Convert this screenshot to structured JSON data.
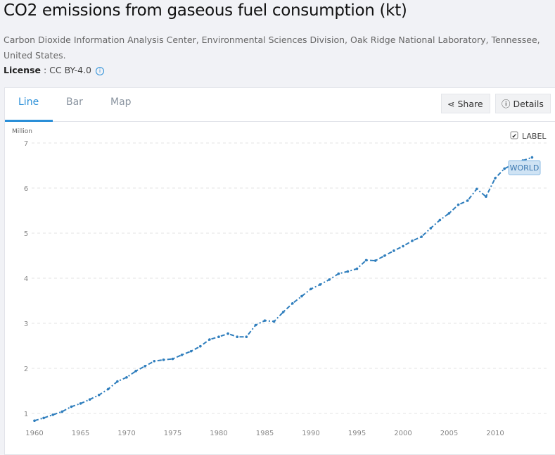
{
  "title": "CO2 emissions from gaseous fuel consumption (kt)",
  "source": "Carbon Dioxide Information Analysis Center, Environmental Sciences Division, Oak Ridge National Laboratory, Tennessee, United States.",
  "license": {
    "label": "License",
    "value": ": CC BY-4.0"
  },
  "tabs": [
    "Line",
    "Bar",
    "Map"
  ],
  "buttons": {
    "share": "Share",
    "details": "Details"
  },
  "label_toggle": "LABEL",
  "colors": {
    "accent": "#2a8fd8",
    "series": "#2f7ebd"
  },
  "chart_data": {
    "type": "line",
    "title": "CO2 emissions from gaseous fuel consumption (kt)",
    "ylabel": "Million",
    "ylim": [
      0.8,
      7
    ],
    "yticks": [
      1,
      2,
      3,
      4,
      5,
      6,
      7
    ],
    "xticks": [
      1960,
      1965,
      1970,
      1975,
      1980,
      1985,
      1990,
      1995,
      2000,
      2005,
      2010
    ],
    "grid": true,
    "series": [
      {
        "name": "WORLD",
        "x": [
          1960,
          1961,
          1962,
          1963,
          1964,
          1965,
          1966,
          1967,
          1968,
          1969,
          1970,
          1971,
          1972,
          1973,
          1974,
          1975,
          1976,
          1977,
          1978,
          1979,
          1980,
          1981,
          1982,
          1983,
          1984,
          1985,
          1986,
          1987,
          1988,
          1989,
          1990,
          1991,
          1992,
          1993,
          1994,
          1995,
          1996,
          1997,
          1998,
          1999,
          2000,
          2001,
          2002,
          2003,
          2004,
          2005,
          2006,
          2007,
          2008,
          2009,
          2010,
          2011,
          2012,
          2013,
          2014
        ],
        "values": [
          0.84,
          0.9,
          0.97,
          1.04,
          1.15,
          1.22,
          1.31,
          1.41,
          1.54,
          1.71,
          1.8,
          1.94,
          2.05,
          2.16,
          2.19,
          2.21,
          2.3,
          2.38,
          2.49,
          2.64,
          2.7,
          2.77,
          2.7,
          2.7,
          2.96,
          3.06,
          3.04,
          3.25,
          3.44,
          3.6,
          3.76,
          3.86,
          3.97,
          4.1,
          4.15,
          4.21,
          4.4,
          4.39,
          4.5,
          4.61,
          4.71,
          4.83,
          4.92,
          5.11,
          5.29,
          5.44,
          5.63,
          5.72,
          5.98,
          5.81,
          6.22,
          6.43,
          6.53,
          6.61,
          6.68
        ]
      }
    ]
  }
}
